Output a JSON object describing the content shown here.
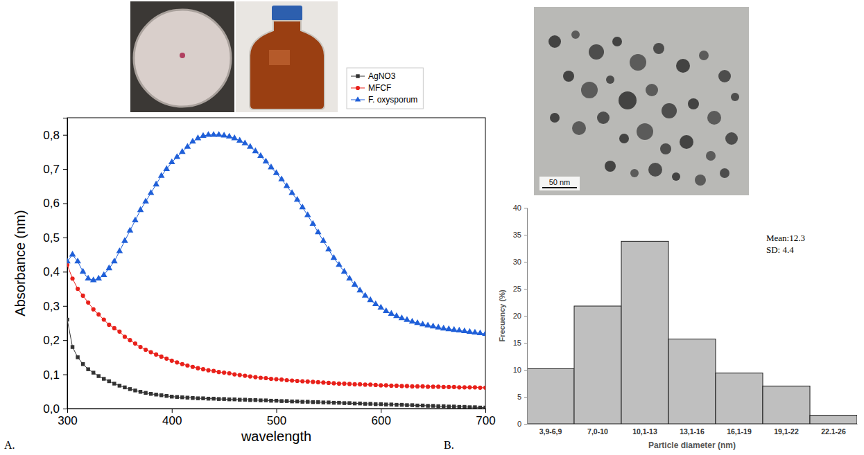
{
  "chart_data": [
    {
      "type": "line",
      "panel": "A.",
      "x_label": "wavelength",
      "y_label": "Absorbance (nm)",
      "x": [
        300,
        305,
        310,
        315,
        320,
        325,
        330,
        335,
        340,
        345,
        350,
        355,
        360,
        365,
        370,
        375,
        380,
        385,
        390,
        395,
        400,
        405,
        410,
        415,
        420,
        425,
        430,
        435,
        440,
        445,
        450,
        455,
        460,
        465,
        470,
        475,
        480,
        485,
        490,
        495,
        500,
        505,
        510,
        515,
        520,
        525,
        530,
        535,
        540,
        545,
        550,
        555,
        560,
        565,
        570,
        575,
        580,
        585,
        590,
        595,
        600,
        605,
        610,
        615,
        620,
        625,
        630,
        635,
        640,
        645,
        650,
        655,
        660,
        665,
        670,
        675,
        680,
        685,
        690,
        695,
        700
      ],
      "series": [
        {
          "name": "AgNO3",
          "color": "#333333",
          "marker": "square",
          "values": [
            0.26,
            0.18,
            0.15,
            0.13,
            0.115,
            0.105,
            0.095,
            0.087,
            0.08,
            0.073,
            0.067,
            0.062,
            0.057,
            0.053,
            0.049,
            0.046,
            0.043,
            0.041,
            0.039,
            0.037,
            0.035,
            0.034,
            0.033,
            0.032,
            0.031,
            0.03,
            0.03,
            0.029,
            0.029,
            0.028,
            0.028,
            0.027,
            0.027,
            0.026,
            0.026,
            0.025,
            0.025,
            0.024,
            0.024,
            0.023,
            0.023,
            0.022,
            0.022,
            0.021,
            0.021,
            0.02,
            0.02,
            0.019,
            0.019,
            0.018,
            0.018,
            0.017,
            0.017,
            0.016,
            0.016,
            0.015,
            0.015,
            0.014,
            0.014,
            0.013,
            0.013,
            0.012,
            0.012,
            0.011,
            0.011,
            0.01,
            0.01,
            0.009,
            0.009,
            0.008,
            0.008,
            0.007,
            0.007,
            0.006,
            0.006,
            0.005,
            0.005,
            0.004,
            0.004,
            0.003,
            0.003
          ]
        },
        {
          "name": "MFCF",
          "color": "#e8201a",
          "marker": "circle",
          "values": [
            0.42,
            0.38,
            0.35,
            0.33,
            0.31,
            0.29,
            0.275,
            0.26,
            0.245,
            0.235,
            0.225,
            0.21,
            0.2,
            0.19,
            0.18,
            0.172,
            0.165,
            0.158,
            0.152,
            0.146,
            0.14,
            0.135,
            0.13,
            0.126,
            0.122,
            0.118,
            0.115,
            0.112,
            0.11,
            0.107,
            0.105,
            0.103,
            0.1,
            0.098,
            0.096,
            0.094,
            0.092,
            0.09,
            0.089,
            0.087,
            0.086,
            0.085,
            0.083,
            0.082,
            0.081,
            0.08,
            0.079,
            0.078,
            0.077,
            0.076,
            0.075,
            0.074,
            0.073,
            0.073,
            0.072,
            0.071,
            0.071,
            0.07,
            0.07,
            0.069,
            0.068,
            0.068,
            0.067,
            0.067,
            0.066,
            0.066,
            0.065,
            0.065,
            0.065,
            0.064,
            0.064,
            0.064,
            0.063,
            0.063,
            0.063,
            0.062,
            0.062,
            0.062,
            0.062,
            0.061,
            0.061
          ]
        },
        {
          "name": "F. oxysporum",
          "color": "#1f5fd8",
          "marker": "triangle",
          "values": [
            0.43,
            0.45,
            0.43,
            0.4,
            0.38,
            0.375,
            0.38,
            0.39,
            0.41,
            0.43,
            0.46,
            0.49,
            0.52,
            0.55,
            0.58,
            0.605,
            0.63,
            0.655,
            0.68,
            0.7,
            0.72,
            0.735,
            0.75,
            0.765,
            0.78,
            0.79,
            0.797,
            0.8,
            0.8,
            0.8,
            0.798,
            0.795,
            0.79,
            0.783,
            0.775,
            0.765,
            0.752,
            0.738,
            0.722,
            0.705,
            0.688,
            0.67,
            0.65,
            0.63,
            0.61,
            0.588,
            0.565,
            0.54,
            0.515,
            0.49,
            0.465,
            0.44,
            0.42,
            0.4,
            0.38,
            0.362,
            0.345,
            0.33,
            0.317,
            0.305,
            0.295,
            0.285,
            0.277,
            0.27,
            0.264,
            0.259,
            0.254,
            0.25,
            0.246,
            0.243,
            0.24,
            0.237,
            0.234,
            0.232,
            0.23,
            0.228,
            0.226,
            0.224,
            0.222,
            0.22,
            0.218
          ]
        }
      ],
      "xlim": [
        300,
        700
      ],
      "xticks": [
        300,
        400,
        500,
        600,
        700
      ],
      "ylim": [
        0,
        0.85
      ],
      "yticks": [
        {
          "value": 0,
          "label": "0,0"
        },
        {
          "value": 0.1,
          "label": "0,1"
        },
        {
          "value": 0.2,
          "label": "0,2"
        },
        {
          "value": 0.3,
          "label": "0,3"
        },
        {
          "value": 0.4,
          "label": "0,4"
        },
        {
          "value": 0.5,
          "label": "0,5"
        },
        {
          "value": 0.6,
          "label": "0,6"
        },
        {
          "value": 0.7,
          "label": "0,7"
        },
        {
          "value": 0.8,
          "label": "0,8"
        }
      ],
      "legend": "top right"
    },
    {
      "type": "bar",
      "panel": "B.",
      "x_label": "Particle diameter (nm)",
      "y_label": "Frecuency (%)",
      "categories": [
        "3,9-6,9",
        "7,0-10",
        "10,1-13",
        "13,1-16",
        "16,1-19",
        "19,1-22",
        "22.1-26"
      ],
      "values": [
        10.2,
        21.8,
        33.8,
        15.7,
        9.4,
        7.0,
        1.6
      ],
      "color": "#bfbfbf",
      "ylim": [
        0,
        40
      ],
      "yticks": [
        0,
        5,
        10,
        15,
        20,
        25,
        30,
        35,
        40
      ],
      "annotations": [
        "Mean:12.3",
        "SD: 4.4"
      ],
      "scale_bar_label": "50 nm"
    }
  ]
}
